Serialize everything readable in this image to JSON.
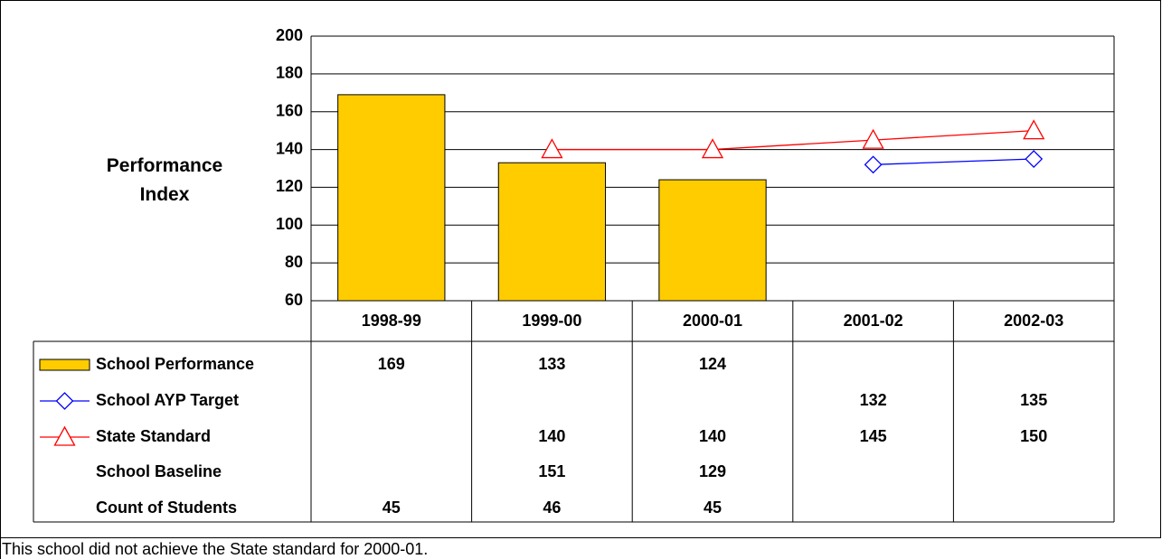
{
  "chart_data": {
    "type": "bar",
    "y_label": "Performance Index",
    "categories": [
      "1998-99",
      "1999-00",
      "2000-01",
      "2001-02",
      "2002-03"
    ],
    "series": [
      {
        "name": "School Performance",
        "type": "bar",
        "color": "#ffcc00",
        "values": [
          169,
          133,
          124,
          null,
          null
        ]
      },
      {
        "name": "School AYP Target",
        "type": "line",
        "marker": "diamond",
        "color": "#0000ff",
        "values": [
          null,
          null,
          null,
          132,
          135
        ]
      },
      {
        "name": "State Standard",
        "type": "line",
        "marker": "triangle",
        "color": "#ff0000",
        "values": [
          null,
          140,
          140,
          145,
          150
        ]
      },
      {
        "name": "School Baseline",
        "values": [
          null,
          151,
          129,
          null,
          null
        ]
      },
      {
        "name": "Count of Students",
        "values": [
          45,
          46,
          45,
          null,
          null
        ]
      }
    ],
    "ylim": [
      60,
      200
    ],
    "yticks": [
      60,
      80,
      100,
      120,
      140,
      160,
      180,
      200
    ],
    "grid": true
  },
  "footnote": "This school did not achieve the State standard for 2000-01."
}
